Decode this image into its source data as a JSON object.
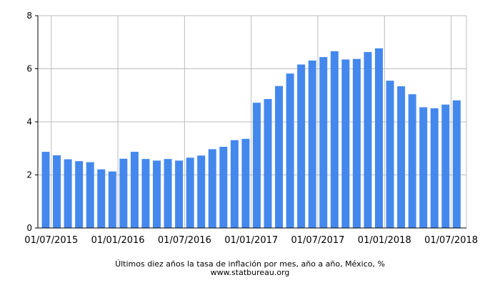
{
  "chart_data": {
    "type": "bar",
    "title": "Últimos diez años la tasa de inflación por mes, año a año, México, %",
    "source": "www.statbureau.org",
    "xlabel": "",
    "ylabel": "",
    "ylim": [
      0,
      8
    ],
    "y_ticks": [
      0,
      2,
      4,
      6,
      8
    ],
    "x_tick_labels": [
      "01/07/2015",
      "01/01/2016",
      "01/07/2016",
      "01/01/2017",
      "01/07/2017",
      "01/01/2018",
      "01/07/2018"
    ],
    "grid": true,
    "bar_color": "#4488ee",
    "categories": [
      "2015-06",
      "2015-07",
      "2015-08",
      "2015-09",
      "2015-10",
      "2015-11",
      "2015-12",
      "2016-01",
      "2016-02",
      "2016-03",
      "2016-04",
      "2016-05",
      "2016-06",
      "2016-07",
      "2016-08",
      "2016-09",
      "2016-10",
      "2016-11",
      "2016-12",
      "2017-01",
      "2017-02",
      "2017-03",
      "2017-04",
      "2017-05",
      "2017-06",
      "2017-07",
      "2017-08",
      "2017-09",
      "2017-10",
      "2017-11",
      "2017-12",
      "2018-01",
      "2018-02",
      "2018-03",
      "2018-04",
      "2018-05",
      "2018-06",
      "2018-07"
    ],
    "values": [
      2.87,
      2.74,
      2.59,
      2.52,
      2.48,
      2.21,
      2.13,
      2.61,
      2.87,
      2.6,
      2.54,
      2.6,
      2.54,
      2.65,
      2.73,
      2.97,
      3.06,
      3.31,
      3.36,
      4.72,
      4.86,
      5.35,
      5.82,
      6.16,
      6.31,
      6.44,
      6.66,
      6.35,
      6.37,
      6.63,
      6.77,
      5.55,
      5.34,
      5.04,
      4.55,
      4.51,
      4.65,
      4.81
    ]
  }
}
